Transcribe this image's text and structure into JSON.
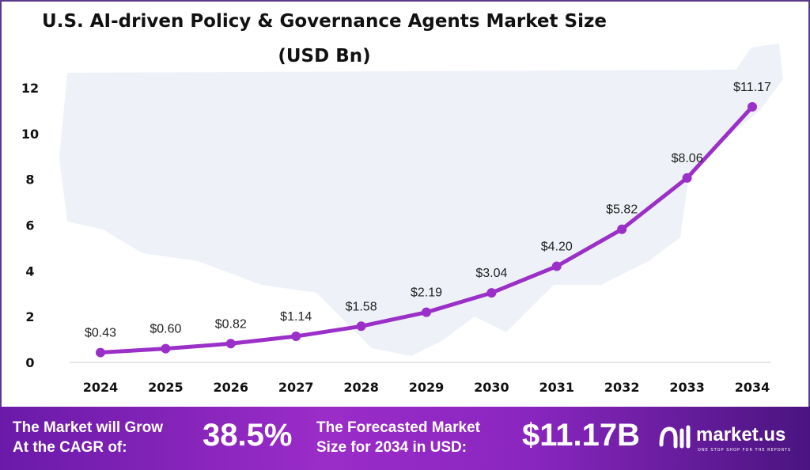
{
  "chart_data": {
    "type": "line",
    "title": "U.S. AI-driven Policy & Governance Agents Market Size",
    "subtitle": "(USD Bn)",
    "categories": [
      "2024",
      "2025",
      "2026",
      "2027",
      "2028",
      "2029",
      "2030",
      "2031",
      "2032",
      "2033",
      "2034"
    ],
    "values": [
      0.43,
      0.6,
      0.82,
      1.14,
      1.58,
      2.19,
      3.04,
      4.2,
      5.82,
      8.06,
      11.17
    ],
    "data_labels": [
      "$0.43",
      "$0.60",
      "$0.82",
      "$1.14",
      "$1.58",
      "$2.19",
      "$3.04",
      "$4.20",
      "$5.82",
      "$8.06",
      "$11.17"
    ],
    "yticks": [
      "0",
      "2",
      "4",
      "6",
      "8",
      "10",
      "12"
    ],
    "ylim": [
      0,
      12
    ],
    "grid": false,
    "line_color": "#9b30c8",
    "background": "US map silhouette"
  },
  "banner": {
    "cagr_label_1": "The Market will Grow",
    "cagr_label_2": "At the CAGR of:",
    "cagr_value": "38.5%",
    "forecast_label_1": "The Forecasted Market",
    "forecast_label_2": "Size for 2034 in USD:",
    "forecast_value": "$11.17B",
    "logo_name": "market.us",
    "logo_tagline": "ONE STOP SHOP FOR THE REPORTS"
  }
}
